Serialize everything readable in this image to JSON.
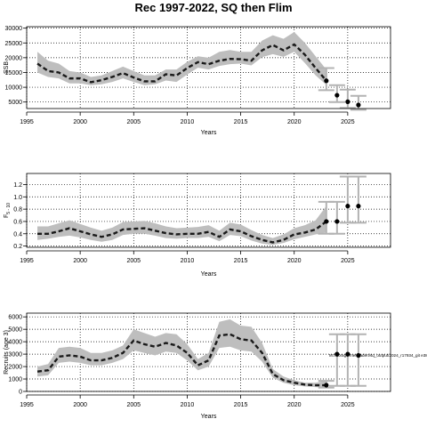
{
  "title": "Rec 1997-2022, SQ then Flim",
  "colors": {
    "band": "#bebebe",
    "line": "#1a1a1a",
    "whisker": "#b3b3b3"
  },
  "chart_data": [
    {
      "type": "line",
      "ylabel": "SSB",
      "xlabel": "Years",
      "xlim": [
        1995,
        2029
      ],
      "ylim": [
        2800,
        30500
      ],
      "x_ticks": [
        1995,
        2000,
        2005,
        2010,
        2015,
        2020,
        2025
      ],
      "x_tick_labels": [
        "1995",
        "2000",
        "2005",
        "2010",
        "2015",
        "2020",
        "2025"
      ],
      "y_ticks": [
        5000,
        10000,
        15000,
        20000,
        25000,
        30000
      ],
      "y_tick_labels": [
        "5000",
        "10000",
        "15000",
        "20000",
        "25000",
        "30000"
      ],
      "grid": "dotted",
      "series": [
        {
          "x": [
            1996,
            1997,
            1998,
            1999,
            2000,
            2001,
            2002,
            2003,
            2004,
            2005,
            2006,
            2007,
            2008,
            2009,
            2010,
            2011,
            2012,
            2013,
            2014,
            2015,
            2016,
            2017,
            2018,
            2019,
            2020,
            2021,
            2022,
            2023
          ],
          "median": [
            18000,
            15500,
            15000,
            13000,
            13000,
            11700,
            12400,
            13500,
            14800,
            13300,
            12000,
            12000,
            14400,
            14000,
            16500,
            18500,
            17800,
            19000,
            19600,
            19500,
            19000,
            22500,
            24300,
            22500,
            24500,
            21000,
            16500,
            12200
          ],
          "lower": [
            15000,
            13500,
            13000,
            11300,
            11300,
            10700,
            11000,
            11800,
            13000,
            11800,
            10700,
            11000,
            12300,
            11800,
            14300,
            16600,
            16000,
            17200,
            17800,
            18000,
            17400,
            20200,
            21200,
            20300,
            22000,
            18200,
            14000,
            10800
          ],
          "upper": [
            22000,
            19000,
            18000,
            15500,
            15000,
            13500,
            14000,
            15500,
            17000,
            15500,
            14000,
            14000,
            16000,
            16000,
            18600,
            20500,
            20000,
            22000,
            22600,
            22000,
            22000,
            25800,
            27600,
            26400,
            28700,
            25000,
            20500,
            16000
          ]
        }
      ],
      "projection": [
        {
          "x": 2023,
          "median": 12200,
          "lower": 9000,
          "upper": 16500
        },
        {
          "x": 2024,
          "median": 7300,
          "lower": 5000,
          "upper": 10700
        },
        {
          "x": 2025,
          "median": 5100,
          "lower": 3000,
          "upper": 9200
        },
        {
          "x": 2026,
          "median": 4000,
          "lower": 2400,
          "upper": 7100
        }
      ]
    },
    {
      "type": "line",
      "ylabel": "F5-10",
      "ylabel_main": "F",
      "ylabel_sub": "5 - 10",
      "xlabel": "Years",
      "xlim": [
        1995,
        2029
      ],
      "ylim": [
        0.18,
        1.38
      ],
      "x_ticks": [
        1995,
        2000,
        2005,
        2010,
        2015,
        2020,
        2025
      ],
      "x_tick_labels": [
        "1995",
        "2000",
        "2005",
        "2010",
        "2015",
        "2020",
        "2025"
      ],
      "y_ticks": [
        0.2,
        0.4,
        0.6,
        0.8,
        1.0,
        1.2
      ],
      "y_tick_labels": [
        "0.2",
        "0.4",
        "0.6",
        "0.8",
        "1.0",
        "1.2"
      ],
      "grid": "dotted",
      "series": [
        {
          "x": [
            1996,
            1997,
            1998,
            1999,
            2000,
            2001,
            2002,
            2003,
            2004,
            2005,
            2006,
            2007,
            2008,
            2009,
            2010,
            2011,
            2012,
            2013,
            2014,
            2015,
            2016,
            2017,
            2018,
            2019,
            2020,
            2021,
            2022,
            2023
          ],
          "median": [
            0.4,
            0.4,
            0.44,
            0.49,
            0.44,
            0.39,
            0.35,
            0.39,
            0.47,
            0.48,
            0.49,
            0.45,
            0.41,
            0.39,
            0.4,
            0.4,
            0.43,
            0.35,
            0.47,
            0.44,
            0.36,
            0.3,
            0.26,
            0.3,
            0.39,
            0.42,
            0.47,
            0.6
          ],
          "lower": [
            0.3,
            0.32,
            0.35,
            0.37,
            0.34,
            0.3,
            0.27,
            0.3,
            0.38,
            0.4,
            0.4,
            0.37,
            0.33,
            0.32,
            0.33,
            0.33,
            0.35,
            0.28,
            0.38,
            0.36,
            0.29,
            0.24,
            0.22,
            0.25,
            0.31,
            0.35,
            0.39,
            0.42
          ],
          "upper": [
            0.52,
            0.52,
            0.57,
            0.62,
            0.56,
            0.5,
            0.45,
            0.5,
            0.59,
            0.6,
            0.61,
            0.57,
            0.52,
            0.49,
            0.5,
            0.51,
            0.54,
            0.45,
            0.58,
            0.55,
            0.46,
            0.38,
            0.33,
            0.39,
            0.49,
            0.54,
            0.62,
            0.85
          ]
        }
      ],
      "projection": [
        {
          "x": 2023,
          "median": 0.6,
          "lower": 0.4,
          "upper": 0.92
        },
        {
          "x": 2024,
          "median": 0.6,
          "lower": 0.4,
          "upper": 0.92
        },
        {
          "x": 2025,
          "median": 0.85,
          "lower": 0.58,
          "upper": 1.33
        },
        {
          "x": 2026,
          "median": 0.85,
          "lower": 0.58,
          "upper": 1.33
        }
      ]
    },
    {
      "type": "line",
      "ylabel": "Recruits (age 3)",
      "xlabel": "Years",
      "xlim": [
        1995,
        2029
      ],
      "ylim": [
        0,
        6300
      ],
      "x_ticks": [
        1995,
        2000,
        2005,
        2010,
        2015,
        2020,
        2025
      ],
      "x_tick_labels": [
        "1995",
        "2000",
        "2005",
        "2010",
        "2015",
        "2020",
        "2025"
      ],
      "y_ticks": [
        0,
        1000,
        2000,
        3000,
        4000,
        5000,
        6000
      ],
      "y_tick_labels": [
        "0",
        "1000",
        "2000",
        "3000",
        "4000",
        "5000",
        "6000"
      ],
      "grid": "dotted",
      "annotation": "M:/storage/menhaden/sq_output/2024_r17934_git e38",
      "series": [
        {
          "x": [
            1996,
            1997,
            1998,
            1999,
            2000,
            2001,
            2002,
            2003,
            2004,
            2005,
            2006,
            2007,
            2008,
            2009,
            2010,
            2011,
            2012,
            2013,
            2014,
            2015,
            2016,
            2017,
            2018,
            2019,
            2020,
            2021,
            2022,
            2023
          ],
          "median": [
            1600,
            1700,
            2800,
            2900,
            2800,
            2500,
            2500,
            2700,
            3100,
            4100,
            3800,
            3600,
            3900,
            3700,
            3100,
            2100,
            2500,
            4500,
            4600,
            4200,
            4100,
            3100,
            1400,
            900,
            700,
            550,
            500,
            500
          ],
          "lower": [
            1200,
            1300,
            2300,
            2400,
            2300,
            2100,
            2100,
            2300,
            2600,
            3300,
            3100,
            2900,
            3200,
            3100,
            2500,
            1700,
            2000,
            3500,
            3600,
            3300,
            3200,
            2400,
            1100,
            700,
            500,
            400,
            350,
            300
          ],
          "upper": [
            2000,
            2200,
            3500,
            3600,
            3500,
            3100,
            3100,
            3300,
            3700,
            5000,
            4700,
            4400,
            4700,
            4600,
            3800,
            2600,
            3100,
            5600,
            5800,
            5300,
            5200,
            3900,
            1800,
            1200,
            900,
            700,
            700,
            850
          ]
        }
      ],
      "projection": [
        {
          "x": 2023,
          "median": 500,
          "lower": 300,
          "upper": 850
        },
        {
          "x": 2024,
          "median": 3000,
          "lower": 450,
          "upper": 4600
        },
        {
          "x": 2025,
          "median": 3000,
          "lower": 450,
          "upper": 4600
        },
        {
          "x": 2026,
          "median": 2900,
          "lower": 450,
          "upper": 4600
        }
      ]
    }
  ]
}
